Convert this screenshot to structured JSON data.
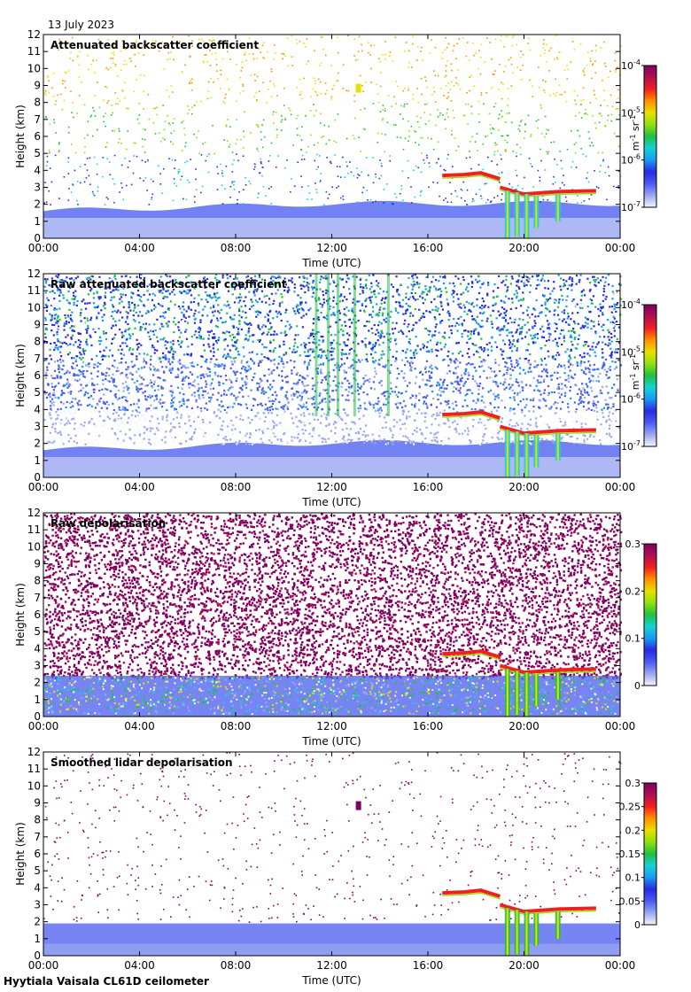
{
  "date_label": "13 July 2023",
  "footer": "Hyytiala Vaisala CL61D ceilometer",
  "colors": {
    "ramp": [
      "#f4f4fb",
      "#9aa8ee",
      "#4a5cf0",
      "#2a2ae0",
      "#1a9af0",
      "#18d0d8",
      "#20c040",
      "#90e010",
      "#e8e000",
      "#ff9000",
      "#f02020",
      "#b01050",
      "#800060"
    ]
  },
  "chart_data": [
    {
      "type": "heatmap",
      "title": "Attenuated backscatter coefficient",
      "xlabel": "Time (UTC)",
      "ylabel": "Height (km)",
      "x_ticks": [
        "00:00",
        "04:00",
        "08:00",
        "12:00",
        "16:00",
        "20:00",
        "00:00"
      ],
      "y_ticks": [
        "0",
        "1",
        "2",
        "3",
        "4",
        "5",
        "6",
        "7",
        "8",
        "9",
        "10",
        "11",
        "12"
      ],
      "ylim": [
        0,
        12
      ],
      "colorbar": {
        "scale": "log",
        "range": [
          1e-07,
          0.0001
        ],
        "tick_base": "10",
        "tick_exponents": [
          "-7",
          "-6",
          "-5",
          "-4"
        ],
        "unit_parts": [
          "m",
          "-1",
          " sr",
          "-1"
        ]
      },
      "features": "boundary layer below ~2 km all day; cloud layer at ~3.7 km from 16:30 to 19:00 descending to ~2.8 km until 23:00; precipitation shafts 19:00-21:30; noise sparse above 3 km"
    },
    {
      "type": "heatmap",
      "title": "Raw attenuated backscatter coefficient",
      "xlabel": "Time (UTC)",
      "ylabel": "Height (km)",
      "x_ticks": [
        "00:00",
        "04:00",
        "08:00",
        "12:00",
        "16:00",
        "20:00",
        "00:00"
      ],
      "y_ticks": [
        "0",
        "1",
        "2",
        "3",
        "4",
        "5",
        "6",
        "7",
        "8",
        "9",
        "10",
        "11",
        "12"
      ],
      "ylim": [
        0,
        12
      ],
      "colorbar": {
        "scale": "log",
        "range": [
          1e-07,
          0.0001
        ],
        "tick_base": "10",
        "tick_exponents": [
          "-7",
          "-6",
          "-5",
          "-4"
        ],
        "unit_parts": [
          "m",
          "-1",
          " sr",
          "-1"
        ]
      },
      "features": "dense noise field increasing with height; same cloud and precipitation signature as above"
    },
    {
      "type": "heatmap",
      "title": "Raw depolarisation",
      "xlabel": "Time (UTC)",
      "ylabel": "Height (km)",
      "x_ticks": [
        "00:00",
        "04:00",
        "08:00",
        "12:00",
        "16:00",
        "20:00",
        "00:00"
      ],
      "y_ticks": [
        "0",
        "1",
        "2",
        "3",
        "4",
        "5",
        "6",
        "7",
        "8",
        "9",
        "10",
        "11",
        "12"
      ],
      "ylim": [
        0,
        12
      ],
      "colorbar": {
        "scale": "linear",
        "range": [
          0,
          0.3
        ],
        "ticks": [
          "0",
          "0.1",
          "0.2",
          "0.3"
        ]
      },
      "features": "noise (purple/white speckle) above ~2.5 km; low depolarisation in boundary layer"
    },
    {
      "type": "heatmap",
      "title": "Smoothed lidar depolarisation",
      "xlabel": "Time (UTC)",
      "ylabel": "Height (km)",
      "x_ticks": [
        "00:00",
        "04:00",
        "08:00",
        "12:00",
        "16:00",
        "20:00",
        "00:00"
      ],
      "y_ticks": [
        "0",
        "1",
        "2",
        "3",
        "4",
        "5",
        "6",
        "7",
        "8",
        "9",
        "10",
        "11",
        "12"
      ],
      "ylim": [
        0,
        12
      ],
      "colorbar": {
        "scale": "linear",
        "range": [
          0,
          0.3
        ],
        "ticks": [
          "0",
          "0.05",
          "0.1",
          "0.15",
          "0.2",
          "0.25",
          "0.3"
        ]
      },
      "features": "mostly white above boundary layer with sparse purple specks; cloud layer and precipitation visible"
    }
  ]
}
